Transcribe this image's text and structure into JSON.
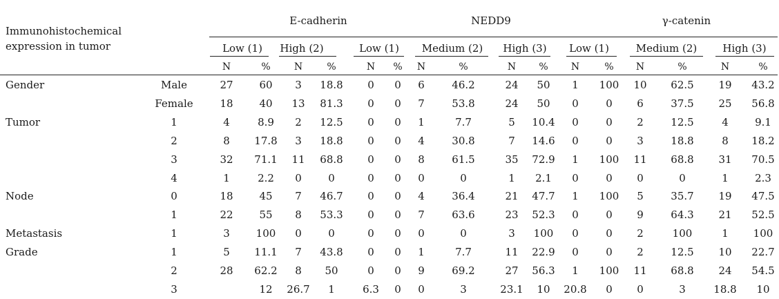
{
  "header": {
    "row_label_lines": [
      "Immunohistochemical",
      "expression in tumor"
    ],
    "groups": [
      "E-cadherin",
      "NEDD9",
      "γ-catenin"
    ],
    "subgroups": [
      "Low (1)",
      "High (2)",
      "Low (1)",
      "Medium (2)",
      "High (3)",
      "Low (1)",
      "Medium (2)",
      "High (3)"
    ],
    "stats": [
      "N",
      "%",
      "N",
      "%",
      "N",
      "%",
      "N",
      "%",
      "N",
      "%",
      "N",
      "%",
      "N",
      "%",
      "N",
      "%"
    ]
  },
  "rows": [
    {
      "category": "Gender",
      "level": "Male",
      "cells": [
        "27",
        "60",
        "3",
        "18.8",
        "0",
        "0",
        "6",
        "46.2",
        "24",
        "50",
        "1",
        "100",
        "10",
        "62.5",
        "19",
        "43.2"
      ]
    },
    {
      "category": "",
      "level": "Female",
      "cells": [
        "18",
        "40",
        "13",
        "81.3",
        "0",
        "0",
        "7",
        "53.8",
        "24",
        "50",
        "0",
        "0",
        "6",
        "37.5",
        "25",
        "56.8"
      ]
    },
    {
      "category": "Tumor",
      "level": "1",
      "cells": [
        "4",
        "8.9",
        "2",
        "12.5",
        "0",
        "0",
        "1",
        "7.7",
        "5",
        "10.4",
        "0",
        "0",
        "2",
        "12.5",
        "4",
        "9.1"
      ]
    },
    {
      "category": "",
      "level": "2",
      "cells": [
        "8",
        "17.8",
        "3",
        "18.8",
        "0",
        "0",
        "4",
        "30.8",
        "7",
        "14.6",
        "0",
        "0",
        "3",
        "18.8",
        "8",
        "18.2"
      ]
    },
    {
      "category": "",
      "level": "3",
      "cells": [
        "32",
        "71.1",
        "11",
        "68.8",
        "0",
        "0",
        "8",
        "61.5",
        "35",
        "72.9",
        "1",
        "100",
        "11",
        "68.8",
        "31",
        "70.5"
      ]
    },
    {
      "category": "",
      "level": "4",
      "cells": [
        "1",
        "2.2",
        "0",
        "0",
        "0",
        "0",
        "0",
        "0",
        "1",
        "2.1",
        "0",
        "0",
        "0",
        "0",
        "1",
        "2.3"
      ]
    },
    {
      "category": "Node",
      "level": "0",
      "cells": [
        "18",
        "45",
        "7",
        "46.7",
        "0",
        "0",
        "4",
        "36.4",
        "21",
        "47.7",
        "1",
        "100",
        "5",
        "35.7",
        "19",
        "47.5"
      ]
    },
    {
      "category": "",
      "level": "1",
      "cells": [
        "22",
        "55",
        "8",
        "53.3",
        "0",
        "0",
        "7",
        "63.6",
        "23",
        "52.3",
        "0",
        "0",
        "9",
        "64.3",
        "21",
        "52.5"
      ]
    },
    {
      "category": "Metastasis",
      "level": "1",
      "cells": [
        "3",
        "100",
        "0",
        "0",
        "0",
        "0",
        "0",
        "0",
        "3",
        "100",
        "0",
        "0",
        "2",
        "100",
        "1",
        "100"
      ]
    },
    {
      "category": "Grade",
      "level": "1",
      "cells": [
        "5",
        "11.1",
        "7",
        "43.8",
        "0",
        "0",
        "1",
        "7.7",
        "11",
        "22.9",
        "0",
        "0",
        "2",
        "12.5",
        "10",
        "22.7"
      ]
    },
    {
      "category": "",
      "level": "2",
      "cells": [
        "28",
        "62.2",
        "8",
        "50",
        "0",
        "0",
        "9",
        "69.2",
        "27",
        "56.3",
        "1",
        "100",
        "11",
        "68.8",
        "24",
        "54.5"
      ]
    },
    {
      "category": "",
      "level": "3",
      "cells": [
        "",
        "12",
        "26.7",
        "1",
        "6.3",
        "0",
        "0",
        "3",
        "23.1",
        "10",
        "20.8",
        "0",
        "0",
        "3",
        "18.8",
        "10"
      ]
    }
  ]
}
